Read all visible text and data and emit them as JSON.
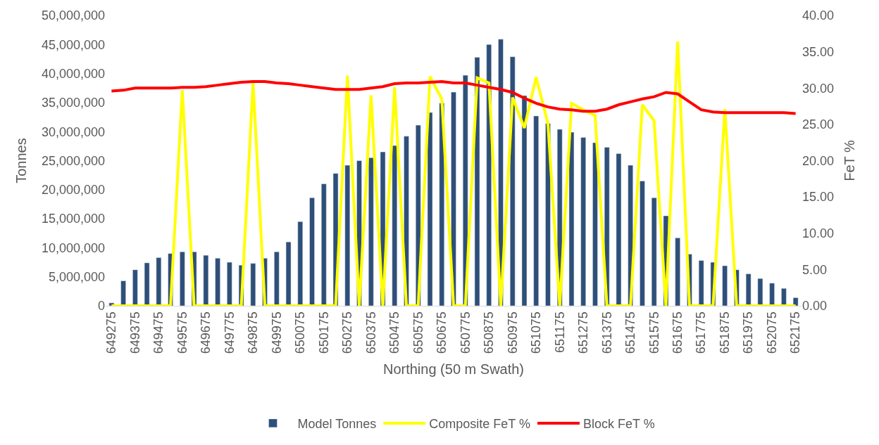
{
  "chart_data": {
    "type": "bar",
    "xlabel": "Northing (50 m Swath)",
    "ylabel": "Tonnes",
    "y2label": "FeT %",
    "categories": [
      "649275",
      null,
      "649375",
      null,
      "649475",
      null,
      "649575",
      null,
      "649675",
      null,
      "649775",
      null,
      "649875",
      null,
      "649975",
      null,
      "650075",
      null,
      "650175",
      null,
      "650275",
      null,
      "650375",
      null,
      "650475",
      null,
      "650575",
      null,
      "650675",
      null,
      "650775",
      null,
      "650875",
      null,
      "650975",
      null,
      "651075",
      null,
      "651175",
      null,
      "651275",
      null,
      "651375",
      null,
      "651475",
      null,
      "651575",
      null,
      "651675",
      null,
      "651775",
      null,
      "651875",
      null,
      "651975",
      null,
      "652075",
      null,
      "652175"
    ],
    "series": [
      {
        "name": "Model Tonnes",
        "color": "#2e4f78",
        "values": [
          500000,
          4300000,
          6200000,
          7400000,
          8300000,
          9000000,
          9300000,
          9300000,
          8700000,
          8200000,
          7500000,
          7000000,
          7300000,
          8200000,
          9300000,
          11000000,
          14500000,
          18600000,
          21000000,
          22800000,
          24200000,
          25000000,
          25500000,
          26500000,
          27600000,
          29200000,
          31100000,
          33300000,
          34900000,
          36800000,
          39700000,
          42800000,
          45000000,
          45900000,
          42900000,
          36200000,
          32700000,
          31400000,
          30400000,
          29900000,
          29000000,
          28100000,
          27300000,
          26200000,
          24200000,
          21500000,
          18600000,
          15500000,
          11700000,
          8900000,
          7800000,
          7500000,
          6900000,
          6200000,
          5500000,
          4700000,
          3900000,
          3000000,
          1400000
        ]
      },
      {
        "name": "Composite FeT %",
        "type": "line",
        "axis": "y2",
        "color": "#ffff00",
        "values": [
          0,
          0,
          0,
          0,
          0,
          0,
          29.7,
          0,
          0,
          0,
          0,
          0,
          30.8,
          0,
          0,
          0,
          0,
          0,
          0,
          0,
          31.7,
          0,
          29.0,
          0,
          30.1,
          0,
          0,
          31.6,
          28.5,
          0,
          0,
          31.4,
          30.7,
          0,
          28.7,
          24.5,
          31.5,
          25.1,
          0,
          27.9,
          27.0,
          26.2,
          0,
          0,
          0,
          27.7,
          25.5,
          0,
          36.4,
          0,
          0,
          0,
          27.1,
          0,
          0,
          0,
          0,
          0,
          0
        ]
      },
      {
        "name": "Block FeT %",
        "type": "line",
        "axis": "y2",
        "color": "#ff0000",
        "values": [
          29.6,
          29.7,
          30.0,
          30.0,
          30.0,
          30.0,
          30.1,
          30.1,
          30.2,
          30.4,
          30.6,
          30.8,
          30.9,
          30.9,
          30.7,
          30.6,
          30.4,
          30.2,
          30.0,
          29.8,
          29.8,
          29.8,
          30.0,
          30.2,
          30.6,
          30.7,
          30.7,
          30.8,
          30.9,
          30.7,
          30.7,
          30.4,
          30.1,
          29.8,
          29.4,
          28.6,
          27.9,
          27.4,
          27.1,
          27.0,
          26.8,
          26.8,
          27.1,
          27.7,
          28.1,
          28.5,
          28.8,
          29.4,
          29.2,
          28.1,
          27.0,
          26.7,
          26.6,
          26.6,
          26.6,
          26.6,
          26.6,
          26.6,
          26.5
        ]
      }
    ],
    "ylim": [
      0,
      50000000
    ],
    "yticks": [
      0,
      {
        "value": 5000000,
        "label": "5,000,000"
      },
      {
        "value": 10000000,
        "label": "10,000,000"
      },
      {
        "value": 15000000,
        "label": "15,000,000"
      },
      {
        "value": 20000000,
        "label": "20,000,000"
      },
      {
        "value": 25000000,
        "label": "25,000,000"
      },
      {
        "value": 30000000,
        "label": "30,000,000"
      },
      {
        "value": 35000000,
        "label": "35,000,000"
      },
      {
        "value": 40000000,
        "label": "40,000,000"
      },
      {
        "value": 45000000,
        "label": "45,000,000"
      },
      {
        "value": 50000000,
        "label": "50,000,000"
      }
    ],
    "y2lim": [
      0,
      40
    ],
    "y2ticks": [
      {
        "value": 0,
        "label": "0.00"
      },
      {
        "value": 5,
        "label": "5.00"
      },
      {
        "value": 10,
        "label": "10.00"
      },
      {
        "value": 15,
        "label": "15.00"
      },
      {
        "value": 20,
        "label": "20.00"
      },
      {
        "value": 25,
        "label": "25.00"
      },
      {
        "value": 30,
        "label": "30.00"
      },
      {
        "value": 35,
        "label": "35.00"
      },
      {
        "value": 40,
        "label": "40.00"
      }
    ],
    "legend": "bottom",
    "marker": "none"
  }
}
